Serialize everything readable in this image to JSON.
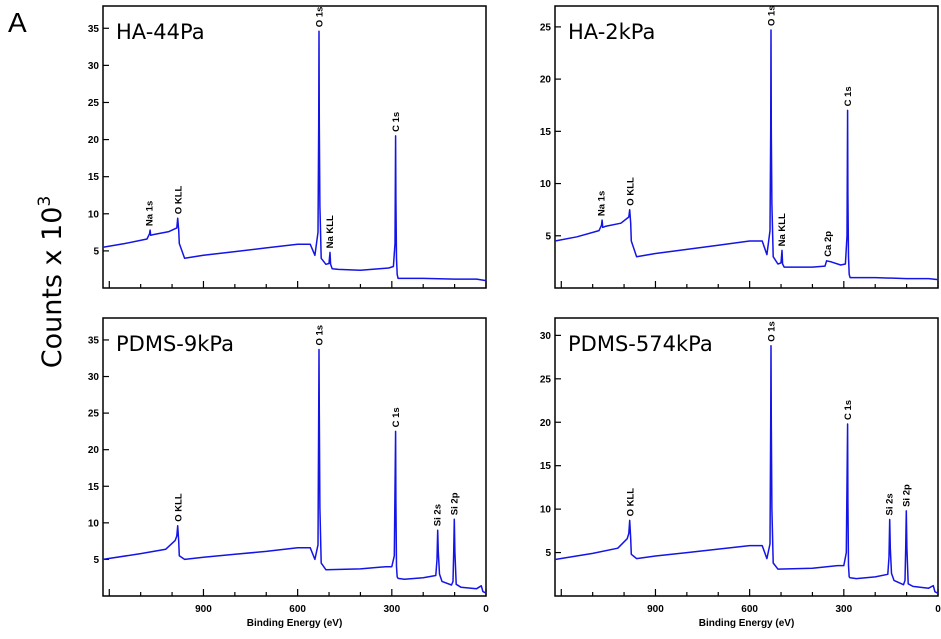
{
  "figure": {
    "panel_letter": "A",
    "ylabel": "Counts x 10",
    "ylabel_exponent": "3",
    "xlabel": "Binding Energy (eV)",
    "x_ticks": [
      900,
      600,
      300,
      0
    ]
  },
  "chart_data": [
    {
      "type": "line",
      "title": "HA-44Pa",
      "xlim": [
        1220,
        0
      ],
      "ylim": [
        0,
        38
      ],
      "y_ticks": [
        5,
        10,
        15,
        20,
        25,
        30,
        35
      ],
      "x_ticks": [],
      "xlabel": "",
      "series": [
        {
          "color": "#1414e6",
          "x": [
            1220,
            1150,
            1080,
            1072,
            1070,
            1068,
            1060,
            1010,
            985,
            982,
            979,
            977,
            960,
            900,
            800,
            700,
            600,
            560,
            545,
            535,
            533,
            532,
            531,
            529,
            525,
            510,
            500,
            497,
            495,
            490,
            470,
            400,
            340,
            310,
            295,
            290,
            288,
            287,
            285,
            283,
            280,
            200,
            100,
            30,
            0
          ],
          "y": [
            5.5,
            6.0,
            6.6,
            7.3,
            7.8,
            7.1,
            7.2,
            7.6,
            8.1,
            9.4,
            7.8,
            6.0,
            4.0,
            4.4,
            4.9,
            5.4,
            5.9,
            5.9,
            4.4,
            7.5,
            22.0,
            34.6,
            22.0,
            11.0,
            4.0,
            3.2,
            3.3,
            4.8,
            3.2,
            2.6,
            2.5,
            2.4,
            2.6,
            2.7,
            2.9,
            6.0,
            20.5,
            12.0,
            4.0,
            1.8,
            1.3,
            1.3,
            1.2,
            1.2,
            1.0
          ]
        }
      ],
      "annotations": [
        {
          "label": "Na 1s",
          "x": 1072
        },
        {
          "label": "O KLL",
          "x": 979
        },
        {
          "label": "O 1s",
          "x": 531
        },
        {
          "label": "Na KLL",
          "x": 497
        },
        {
          "label": "C 1s",
          "x": 287
        }
      ]
    },
    {
      "type": "line",
      "title": "HA-2kPa",
      "xlim": [
        1220,
        0
      ],
      "ylim": [
        0,
        27
      ],
      "y_ticks": [
        5,
        10,
        15,
        20,
        25
      ],
      "x_ticks": [],
      "xlabel": "",
      "series": [
        {
          "color": "#1414e6",
          "x": [
            1220,
            1150,
            1080,
            1072,
            1070,
            1068,
            1060,
            1010,
            985,
            982,
            979,
            977,
            960,
            900,
            800,
            700,
            600,
            560,
            545,
            535,
            533,
            532,
            531,
            529,
            525,
            510,
            500,
            497,
            495,
            490,
            470,
            400,
            360,
            355,
            340,
            310,
            295,
            290,
            288,
            287,
            285,
            283,
            280,
            200,
            100,
            30,
            0
          ],
          "y": [
            4.5,
            4.9,
            5.5,
            6.0,
            6.5,
            5.8,
            5.9,
            6.2,
            6.8,
            7.5,
            6.2,
            4.5,
            3.0,
            3.3,
            3.7,
            4.1,
            4.5,
            4.5,
            3.2,
            5.5,
            15.0,
            24.7,
            15.0,
            8.0,
            3.0,
            2.3,
            2.4,
            3.6,
            2.3,
            2.0,
            2.0,
            2.0,
            2.1,
            2.6,
            2.5,
            2.2,
            2.3,
            5.0,
            17.0,
            9.0,
            3.0,
            1.3,
            1.0,
            1.0,
            0.9,
            0.9,
            0.8
          ]
        }
      ],
      "annotations": [
        {
          "label": "Na 1s",
          "x": 1072
        },
        {
          "label": "O KLL",
          "x": 979
        },
        {
          "label": "O 1s",
          "x": 531
        },
        {
          "label": "Na KLL",
          "x": 497
        },
        {
          "label": "Ca 2p",
          "x": 350
        },
        {
          "label": "C 1s",
          "x": 287
        }
      ]
    },
    {
      "type": "line",
      "title": "PDMS-9kPa",
      "xlim": [
        1220,
        0
      ],
      "ylim": [
        0,
        38
      ],
      "y_ticks": [
        5,
        10,
        15,
        20,
        25,
        30,
        35
      ],
      "x_ticks": [
        900,
        600,
        300,
        0
      ],
      "xlabel": "Binding Energy (eV)",
      "series": [
        {
          "color": "#1414e6",
          "x": [
            1220,
            1100,
            1020,
            990,
            985,
            982,
            979,
            977,
            960,
            900,
            800,
            700,
            600,
            560,
            545,
            535,
            533,
            532,
            531,
            529,
            525,
            510,
            400,
            320,
            300,
            292,
            288,
            287,
            285,
            283,
            280,
            260,
            200,
            160,
            156,
            154,
            152,
            148,
            140,
            110,
            105,
            103,
            101,
            99,
            95,
            80,
            30,
            15,
            10,
            0
          ],
          "y": [
            5.0,
            5.8,
            6.4,
            7.6,
            8.2,
            9.6,
            7.5,
            5.5,
            5.0,
            5.3,
            5.7,
            6.1,
            6.6,
            6.6,
            5.0,
            7.0,
            25.0,
            33.7,
            25.0,
            12.0,
            4.5,
            3.6,
            3.7,
            4.0,
            4.0,
            5.5,
            22.5,
            13.0,
            4.0,
            2.6,
            2.4,
            2.3,
            2.5,
            2.8,
            5.0,
            9.0,
            6.0,
            3.0,
            2.0,
            1.5,
            2.0,
            6.0,
            10.5,
            6.0,
            1.6,
            1.2,
            1.0,
            1.4,
            0.6,
            0.4
          ]
        }
      ],
      "annotations": [
        {
          "label": "O KLL",
          "x": 979
        },
        {
          "label": "O 1s",
          "x": 531
        },
        {
          "label": "C 1s",
          "x": 287
        },
        {
          "label": "Si 2s",
          "x": 154
        },
        {
          "label": "Si 2p",
          "x": 101
        }
      ]
    },
    {
      "type": "line",
      "title": "PDMS-574kPa",
      "xlim": [
        1220,
        0
      ],
      "ylim": [
        0,
        32
      ],
      "y_ticks": [
        5,
        10,
        15,
        20,
        25,
        30
      ],
      "x_ticks": [
        900,
        600,
        300,
        0
      ],
      "xlabel": "Binding Energy (eV)",
      "series": [
        {
          "color": "#1414e6",
          "x": [
            1220,
            1100,
            1020,
            990,
            985,
            982,
            979,
            977,
            960,
            900,
            800,
            700,
            600,
            560,
            545,
            535,
            533,
            532,
            531,
            529,
            525,
            510,
            400,
            320,
            300,
            292,
            288,
            287,
            285,
            283,
            280,
            260,
            200,
            160,
            156,
            154,
            152,
            148,
            140,
            110,
            105,
            103,
            101,
            99,
            95,
            80,
            30,
            15,
            10,
            0
          ],
          "y": [
            4.2,
            4.9,
            5.5,
            6.6,
            7.2,
            8.7,
            6.6,
            4.8,
            4.3,
            4.6,
            5.0,
            5.4,
            5.8,
            5.8,
            4.3,
            6.0,
            20.0,
            28.8,
            20.0,
            10.0,
            3.8,
            3.1,
            3.2,
            3.5,
            3.5,
            5.0,
            19.8,
            11.0,
            3.5,
            2.2,
            2.1,
            2.0,
            2.2,
            2.5,
            4.5,
            8.8,
            5.5,
            2.6,
            1.8,
            1.3,
            1.8,
            5.5,
            9.8,
            5.5,
            1.4,
            1.1,
            0.9,
            1.2,
            0.5,
            0.3
          ]
        }
      ],
      "annotations": [
        {
          "label": "O KLL",
          "x": 979
        },
        {
          "label": "O 1s",
          "x": 531
        },
        {
          "label": "C 1s",
          "x": 287
        },
        {
          "label": "Si 2s",
          "x": 154
        },
        {
          "label": "Si 2p",
          "x": 101
        }
      ]
    }
  ]
}
